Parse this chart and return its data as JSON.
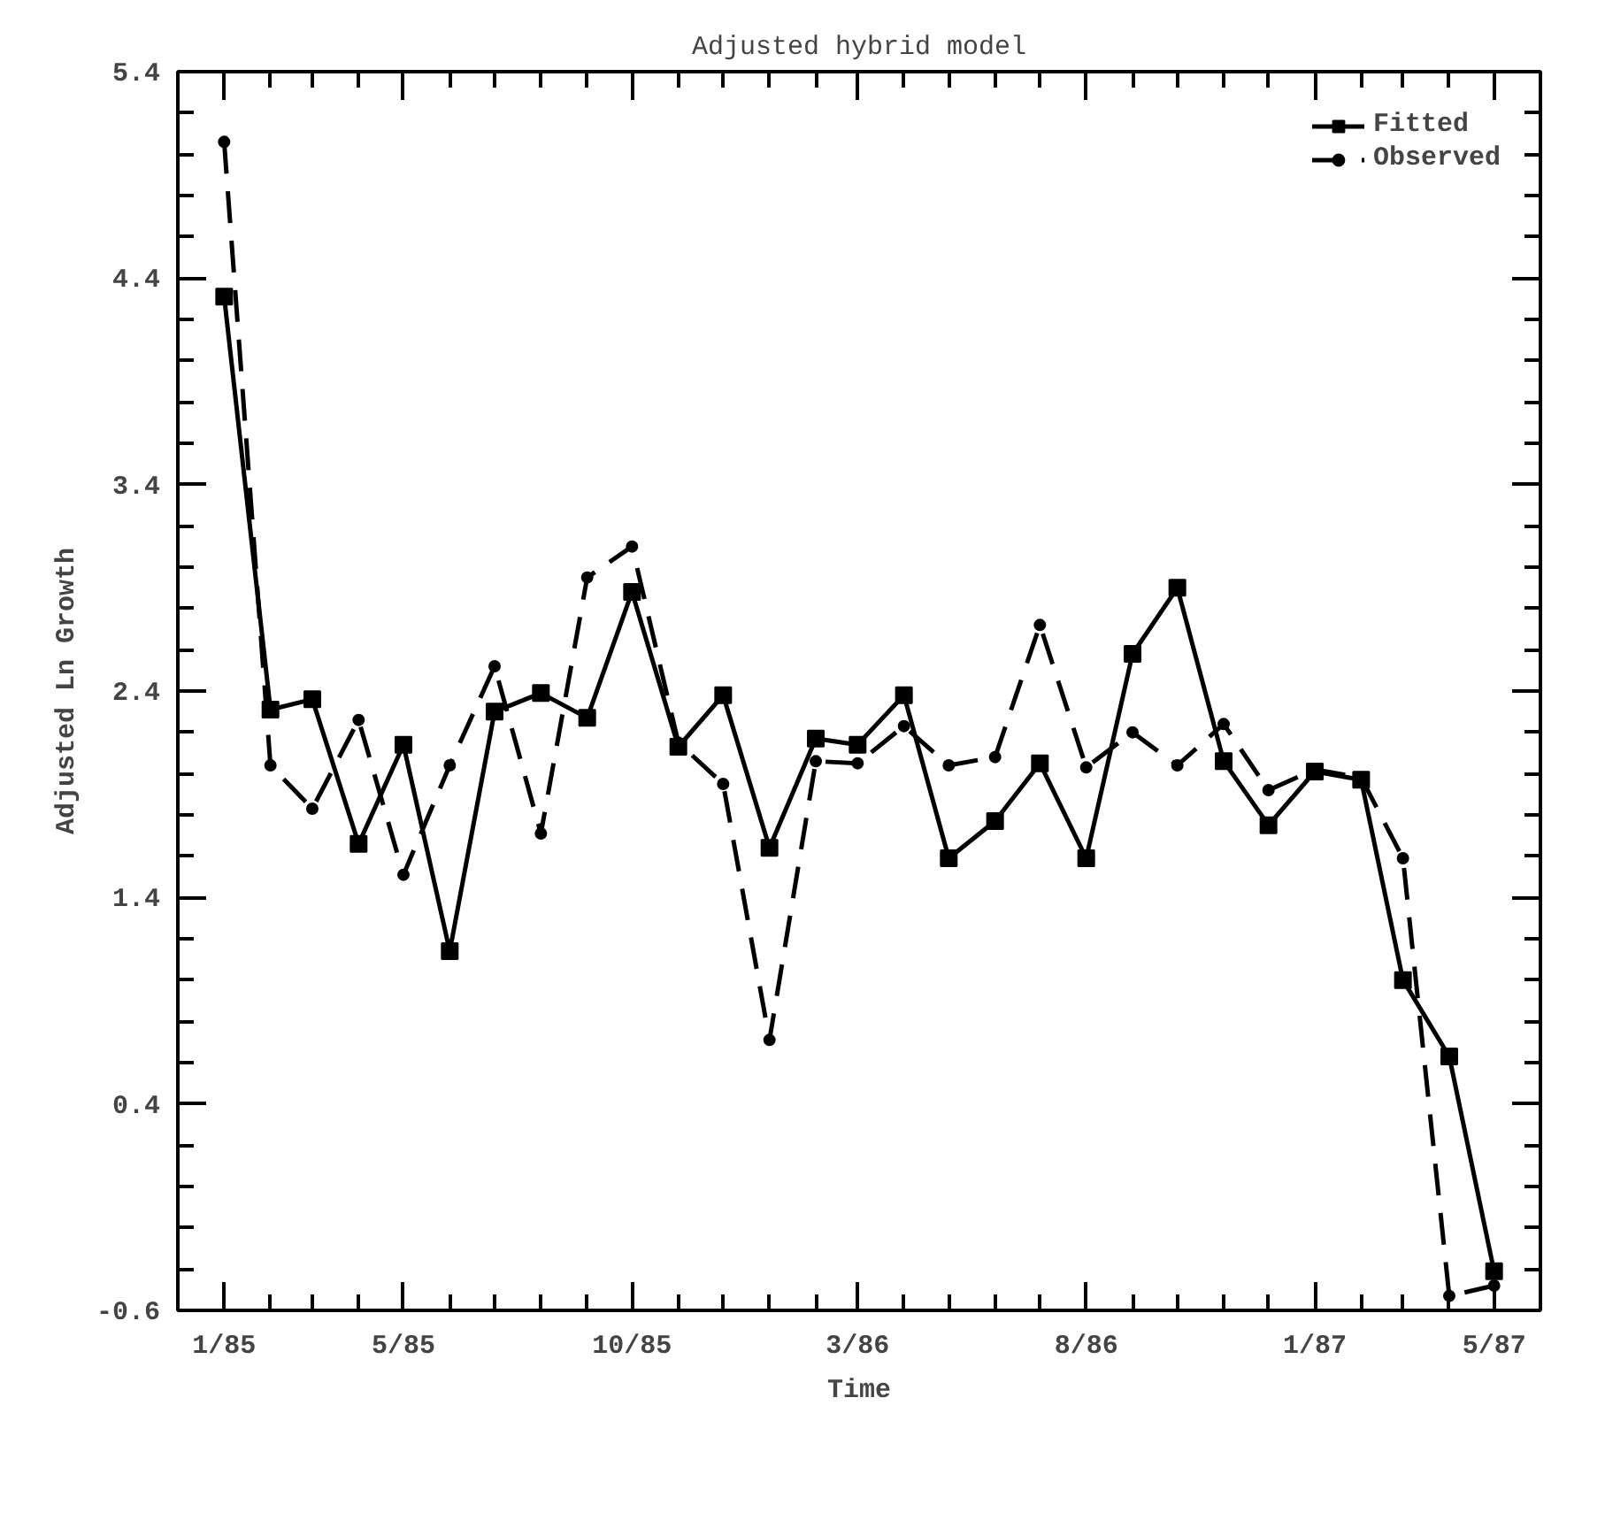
{
  "chart_data": {
    "type": "line",
    "title": "Adjusted hybrid model",
    "xlabel": "Time",
    "ylabel": "Adjusted Ln Growth",
    "x": [
      "1985-01",
      "1985-02",
      "1985-03",
      "1985-04",
      "1985-05",
      "1985-06",
      "1985-07",
      "1985-08",
      "1985-09",
      "1985-10",
      "1985-11",
      "1985-12",
      "1986-01",
      "1986-02",
      "1986-03",
      "1986-04",
      "1986-05",
      "1986-06",
      "1986-07",
      "1986-08",
      "1986-09",
      "1986-10",
      "1986-11",
      "1986-12",
      "1987-01",
      "1987-02",
      "1987-03",
      "1987-04",
      "1987-05"
    ],
    "xlim": [
      "1984-12",
      "1987-06"
    ],
    "xticks": [
      {
        "value": "1985-01",
        "label": "1/85"
      },
      {
        "value": "1985-05",
        "label": "5/85"
      },
      {
        "value": "1985-10",
        "label": "10/85"
      },
      {
        "value": "1986-03",
        "label": "3/86"
      },
      {
        "value": "1986-08",
        "label": "8/86"
      },
      {
        "value": "1987-01",
        "label": "1/87"
      },
      {
        "value": "1987-05",
        "label": "5/87"
      }
    ],
    "ylim": [
      -0.6,
      5.4
    ],
    "yticks": [
      -0.6,
      0.4,
      1.4,
      2.4,
      3.4,
      4.4,
      5.4
    ],
    "series": [
      {
        "name": "Fitted",
        "color": "#000000",
        "line_style": "solid",
        "marker": "square",
        "values": [
          4.31,
          2.31,
          2.36,
          1.66,
          2.14,
          1.14,
          2.3,
          2.39,
          2.27,
          2.88,
          2.13,
          2.38,
          1.64,
          2.17,
          2.14,
          2.38,
          1.59,
          1.77,
          2.05,
          1.59,
          2.58,
          2.9,
          2.06,
          1.75,
          2.01,
          1.97,
          1.0,
          0.63,
          -0.41
        ]
      },
      {
        "name": "Observed",
        "color": "#000000",
        "line_style": "dashed",
        "marker": "circle",
        "values": [
          5.06,
          2.04,
          1.83,
          2.26,
          1.51,
          2.04,
          2.52,
          1.71,
          2.95,
          3.1,
          2.15,
          1.95,
          0.71,
          2.06,
          2.05,
          2.23,
          2.04,
          2.08,
          2.72,
          2.03,
          2.2,
          2.04,
          2.24,
          1.92,
          2.02,
          1.98,
          1.59,
          -0.53,
          -0.48
        ]
      }
    ],
    "grid": false,
    "legend": "top right"
  }
}
